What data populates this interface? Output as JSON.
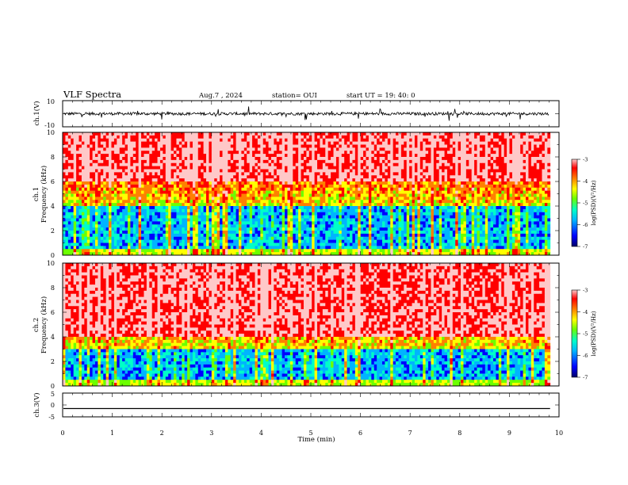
{
  "header": {
    "title": "VLF Spectra",
    "date": "Aug.7  , 2024",
    "station": "station= OUI",
    "start_time": "start  UT  =    19: 40: 0"
  },
  "chart_data": [
    {
      "id": "ch1-waveform",
      "type": "line",
      "ylabel": "ch.1(V)",
      "ylim": [
        -10,
        10
      ],
      "y_tick_labels": [
        "10",
        "-10"
      ],
      "xlim": [
        0,
        10
      ],
      "trace_baseline": 0,
      "trace_color": "#000000"
    },
    {
      "id": "ch1-spectrogram",
      "type": "heatmap",
      "ylabel_line1": "ch.1",
      "ylabel_line2": "Frequency (kHz)",
      "ylim": [
        0,
        10
      ],
      "y_tick_labels": [
        "0",
        "2",
        "4",
        "6",
        "8",
        "10"
      ],
      "xlim": [
        0,
        10
      ],
      "data_end_min": 9.82,
      "colorbar": {
        "label": "log(PSD)(V²/Hz)",
        "range": [
          -7,
          -3
        ],
        "tick_labels": [
          "-3",
          "-4",
          "-5",
          "-6",
          "-7"
        ]
      },
      "blue_band_top_khz": 4,
      "red_band_start_khz": 6
    },
    {
      "id": "ch2-spectrogram",
      "type": "heatmap",
      "ylabel_line1": "ch.2",
      "ylabel_line2": "Frequency (kHz)",
      "ylim": [
        0,
        10
      ],
      "y_tick_labels": [
        "0",
        "2",
        "4",
        "6",
        "8",
        "10"
      ],
      "xlim": [
        0,
        10
      ],
      "data_end_min": 9.82,
      "colorbar": {
        "label": "log(PSD)(V²/Hz)",
        "range": [
          -7,
          -3
        ],
        "tick_labels": [
          "-3",
          "-4",
          "-5",
          "-6",
          "-7"
        ]
      },
      "blue_band_top_khz": 3,
      "red_band_start_khz": 4
    },
    {
      "id": "ch3-waveform",
      "type": "line",
      "ylabel": "ch.3(V)",
      "ylim": [
        -5,
        5
      ],
      "y_tick_labels": [
        "5",
        "0",
        "-5"
      ],
      "xlim": [
        0,
        10
      ],
      "trace_value": -1.5,
      "trace_color": "#000000"
    }
  ],
  "x_axis": {
    "label": "Time  (min)",
    "range": [
      0,
      10
    ],
    "tick_labels": [
      "0",
      "1",
      "2",
      "3",
      "4",
      "5",
      "6",
      "7",
      "8",
      "9",
      "10"
    ]
  },
  "colormap": [
    "#000066",
    "#0000ff",
    "#00b4ff",
    "#00ffc8",
    "#6cff00",
    "#ffff00",
    "#ff8000",
    "#ff0000",
    "#ffc8c8"
  ]
}
